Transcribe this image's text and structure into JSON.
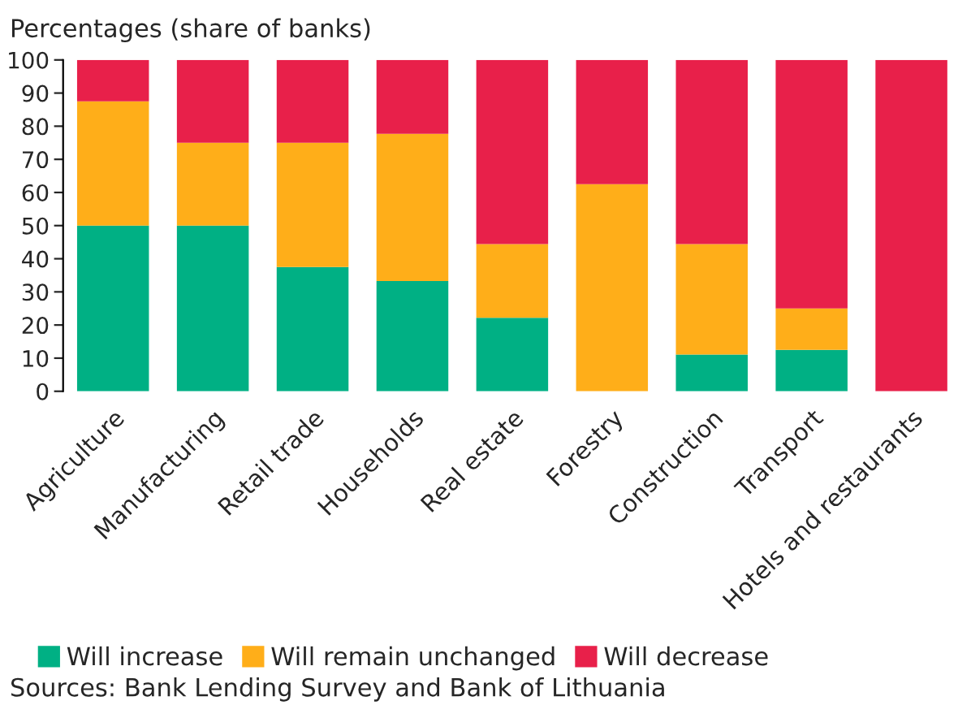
{
  "chart_data": {
    "type": "bar",
    "stacked": true,
    "ylabel": "Percentages (share of banks)",
    "categories": [
      "Agriculture",
      "Manufacturing",
      "Retail trade",
      "Households",
      "Real estate",
      "Forestry",
      "Construction",
      "Transport",
      "Hotels and restaurants"
    ],
    "series": [
      {
        "name": "Will increase",
        "color": "#00b084",
        "values": [
          50,
          50,
          37.5,
          33.3,
          22.2,
          0,
          11.1,
          12.5,
          0
        ]
      },
      {
        "name": "Will remain unchanged",
        "color": "#ffae19",
        "values": [
          37.5,
          25,
          37.5,
          44.4,
          22.2,
          62.5,
          33.3,
          12.5,
          0
        ]
      },
      {
        "name": "Will decrease",
        "color": "#e8204a",
        "values": [
          12.5,
          25,
          25,
          22.3,
          55.6,
          37.5,
          55.6,
          75,
          100
        ]
      }
    ],
    "ylim": [
      0,
      100
    ],
    "yticks": [
      0,
      10,
      20,
      30,
      40,
      50,
      60,
      70,
      80,
      90,
      100
    ],
    "grid": false,
    "legend": "bottom",
    "annotations": [
      "Sources: Bank Lending Survey and Bank of Lithuania"
    ]
  }
}
